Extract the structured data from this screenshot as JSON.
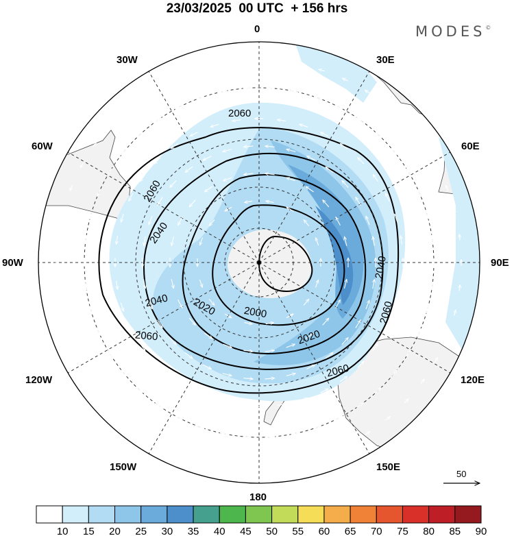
{
  "header": {
    "title": "23/03/2025  00 UTC  + 156 hrs",
    "brand": "MODES",
    "brand_mark": "©"
  },
  "map": {
    "projection": "south-polar-stereographic",
    "longitude_labels": {
      "top": "0",
      "l30w": "30W",
      "r30e": "30E",
      "l60w": "60W",
      "r60e": "60E",
      "l90w": "90W",
      "r90e": "90E",
      "l120w": "120W",
      "r120e": "120E",
      "l150w": "150W",
      "r150e": "150E",
      "bottom": "180"
    },
    "contour_labels": [
      "2060",
      "2060",
      "2040",
      "2040",
      "2020",
      "2000",
      "2040",
      "2060",
      "2020",
      "2060",
      "2060"
    ],
    "reference_vector": "50",
    "colors": {
      "land": "#f2f2f2",
      "coast": "#444444",
      "contour": "#000000",
      "grid": "#333333"
    }
  },
  "legend": {
    "ticks": [
      "10",
      "15",
      "20",
      "25",
      "30",
      "35",
      "40",
      "45",
      "50",
      "55",
      "60",
      "65",
      "70",
      "75",
      "80",
      "85",
      "90"
    ],
    "colors": [
      "#ffffff",
      "#d2eefb",
      "#b2dcf4",
      "#8ec6ea",
      "#6aabdc",
      "#4d8fca",
      "#46a08e",
      "#4db64d",
      "#7ec64f",
      "#c2dc5a",
      "#f5dd57",
      "#f5ad4b",
      "#ef8236",
      "#e6562e",
      "#d93129",
      "#be1f26",
      "#951a1f"
    ]
  }
}
